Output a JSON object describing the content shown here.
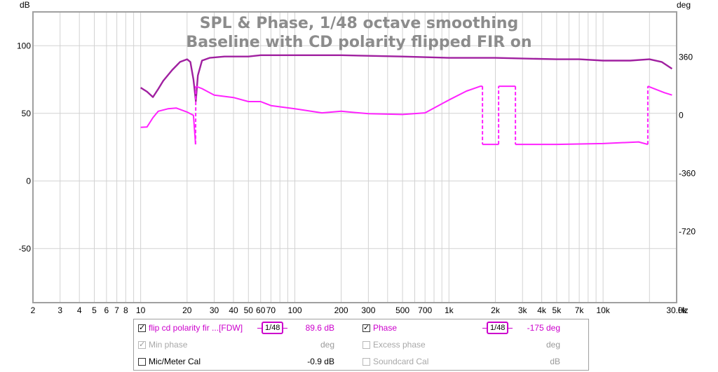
{
  "chart_data": {
    "type": "line",
    "title": "SPL & Phase, 1/48 octave smoothing",
    "subtitle": "Baseline with CD polarity flipped FIR on",
    "xlabel": "Hz",
    "ylabel_left": "dB",
    "ylabel_right": "deg",
    "xlim": [
      2,
      30000
    ],
    "x_scale": "log",
    "ylim_left": [
      -90,
      125
    ],
    "ylim_right": [
      -1160,
      640
    ],
    "grid": true,
    "x_tick_labels": [
      {
        "v": 2,
        "t": "2"
      },
      {
        "v": 3,
        "t": "3"
      },
      {
        "v": 4,
        "t": "4"
      },
      {
        "v": 5,
        "t": "5"
      },
      {
        "v": 6,
        "t": "6"
      },
      {
        "v": 7,
        "t": "7"
      },
      {
        "v": 8,
        "t": "8"
      },
      {
        "v": 10,
        "t": "10"
      },
      {
        "v": 20,
        "t": "20"
      },
      {
        "v": 30,
        "t": "30"
      },
      {
        "v": 40,
        "t": "40"
      },
      {
        "v": 50,
        "t": "50"
      },
      {
        "v": 60,
        "t": "60"
      },
      {
        "v": 70,
        "t": "70"
      },
      {
        "v": 100,
        "t": "100"
      },
      {
        "v": 200,
        "t": "200"
      },
      {
        "v": 300,
        "t": "300"
      },
      {
        "v": 500,
        "t": "500"
      },
      {
        "v": 700,
        "t": "700"
      },
      {
        "v": 1000,
        "t": "1k"
      },
      {
        "v": 2000,
        "t": "2k"
      },
      {
        "v": 3000,
        "t": "3k"
      },
      {
        "v": 4000,
        "t": "4k"
      },
      {
        "v": 5000,
        "t": "5k"
      },
      {
        "v": 7000,
        "t": "7k"
      },
      {
        "v": 10000,
        "t": "10k"
      },
      {
        "v": 30000,
        "t": "30.0k"
      }
    ],
    "y_ticks_left": [
      100,
      50,
      0,
      -50
    ],
    "y_ticks_right": [
      360,
      0,
      -360,
      -720
    ],
    "series": [
      {
        "name": "flip cd polarity fir ...[FDW]",
        "axis": "left",
        "color": "#a020a0",
        "points": [
          [
            10,
            69
          ],
          [
            11,
            66
          ],
          [
            12,
            62
          ],
          [
            13,
            68
          ],
          [
            14,
            74
          ],
          [
            16,
            82
          ],
          [
            18,
            88
          ],
          [
            20,
            90
          ],
          [
            21,
            88
          ],
          [
            22,
            75
          ],
          [
            22.8,
            59
          ],
          [
            23.5,
            78
          ],
          [
            25,
            89
          ],
          [
            28,
            91
          ],
          [
            35,
            92
          ],
          [
            50,
            92
          ],
          [
            60,
            93
          ],
          [
            100,
            93
          ],
          [
            200,
            93
          ],
          [
            500,
            92
          ],
          [
            1000,
            91
          ],
          [
            2000,
            91
          ],
          [
            5000,
            90
          ],
          [
            7000,
            90
          ],
          [
            10000,
            89
          ],
          [
            15000,
            89
          ],
          [
            20000,
            90
          ],
          [
            24000,
            88
          ],
          [
            28000,
            83
          ]
        ]
      },
      {
        "name": "Phase",
        "axis": "right",
        "color": "#ff22ff",
        "points": [
          [
            10,
            -75
          ],
          [
            11,
            -72
          ],
          [
            12,
            -15
          ],
          [
            13,
            25
          ],
          [
            15,
            40
          ],
          [
            17,
            45
          ],
          [
            20,
            20
          ],
          [
            22,
            0
          ],
          [
            22.7,
            -180
          ],
          [
            22.8,
            180
          ],
          [
            25,
            165
          ],
          [
            30,
            125
          ],
          [
            40,
            110
          ],
          [
            50,
            85
          ],
          [
            60,
            85
          ],
          [
            70,
            60
          ],
          [
            100,
            40
          ],
          [
            150,
            15
          ],
          [
            200,
            25
          ],
          [
            300,
            10
          ],
          [
            500,
            5
          ],
          [
            700,
            15
          ],
          [
            1000,
            95
          ],
          [
            1300,
            150
          ],
          [
            1600,
            180
          ],
          [
            1650,
            180
          ],
          [
            1650,
            -180
          ],
          [
            2100,
            -180
          ],
          [
            2100,
            180
          ],
          [
            2700,
            180
          ],
          [
            2700,
            -180
          ],
          [
            5000,
            -180
          ],
          [
            10000,
            -175
          ],
          [
            17000,
            -165
          ],
          [
            19500,
            -180
          ],
          [
            19500,
            180
          ],
          [
            25000,
            140
          ],
          [
            28000,
            125
          ]
        ]
      }
    ]
  },
  "legend": {
    "spl": {
      "label": "flip cd polarity  fir ...[FDW]",
      "value": "89.6 dB",
      "smoothing": "48",
      "checked": true
    },
    "phase": {
      "label": "Phase",
      "value": "-175 deg",
      "smoothing": "48",
      "checked": true
    },
    "min_phase": {
      "label": "Min phase",
      "unit": "deg",
      "checked": true
    },
    "excess_phase": {
      "label": "Excess phase",
      "unit": "deg",
      "checked": false
    },
    "mic_cal": {
      "label": "Mic/Meter Cal",
      "value": "-0.9 dB",
      "checked": false
    },
    "soundcard_cal": {
      "label": "Soundcard Cal",
      "unit": "dB",
      "checked": false
    }
  }
}
